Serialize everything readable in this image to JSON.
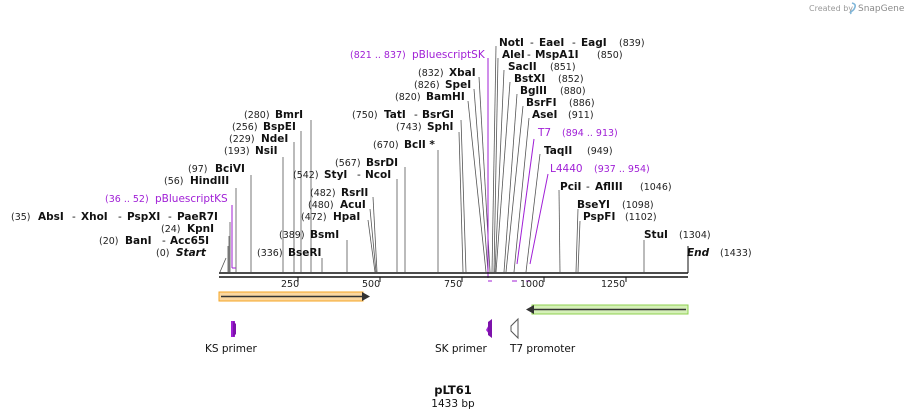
{
  "credit": {
    "text": "Created by",
    "brand": "SnapGene"
  },
  "plasmid": {
    "name": "pLT61",
    "length": "1433 bp"
  },
  "axis": {
    "ticks": [
      "250",
      "500",
      "750",
      "1000",
      "1250"
    ],
    "start_label": "Start",
    "start_pos": "(0)",
    "end_label": "End",
    "end_pos": "(1433)"
  },
  "left_sites": {
    "bseRI": {
      "pos": "(336)",
      "name": "BseRI"
    },
    "acc65i": {
      "pos": "(20)",
      "name1": "BanI",
      "sep": "-",
      "name2": "Acc65I"
    },
    "kpni": {
      "pos": "(24)",
      "name": "KpnI"
    },
    "absi": {
      "pos": "(35)",
      "n1": "AbsI",
      "n2": "XhoI",
      "n3": "PspXI",
      "n4": "PaeR7I",
      "sep": "-"
    },
    "hindiii": {
      "pos": "(56)",
      "name": "HindIII"
    },
    "bcivi": {
      "pos": "(97)",
      "name": "BciVI"
    },
    "nsii": {
      "pos": "(193)",
      "name": "NsiI"
    },
    "ndei": {
      "pos": "(229)",
      "name": "NdeI"
    },
    "bspei": {
      "pos": "(256)",
      "name": "BspEI"
    },
    "bmri": {
      "pos": "(280)",
      "name": "BmrI"
    },
    "bsmi": {
      "pos": "(389)",
      "name": "BsmI"
    },
    "hpai": {
      "pos": "(472)",
      "name": "HpaI"
    },
    "acui": {
      "pos": "(480)",
      "name": "AcuI"
    },
    "rsrii": {
      "pos": "(482)",
      "name": "RsrII"
    },
    "styi": {
      "pos": "(542)",
      "name1": "StyI",
      "sep": "-",
      "name2": "NcoI"
    },
    "bsrdi": {
      "pos": "(567)",
      "name": "BsrDI"
    },
    "bcli": {
      "pos": "(670)",
      "name": "BclI *"
    },
    "sphi": {
      "pos": "(743)",
      "name": "SphI"
    },
    "tati": {
      "pos": "(750)",
      "name1": "TatI",
      "sep": "-",
      "name2": "BsrGI"
    }
  },
  "right_sites": {
    "bamhi": {
      "pos": "(820)",
      "name": "BamHI"
    },
    "spei": {
      "pos": "(826)",
      "name": "SpeI"
    },
    "xbai": {
      "pos": "(832)",
      "name": "XbaI"
    },
    "noti": {
      "n1": "NotI",
      "n2": "EaeI",
      "n3": "EagI",
      "sep": "-",
      "pos": "(839)"
    },
    "alei": {
      "n1": "AleI",
      "sep": "-",
      "n2": "MspA1I",
      "pos": "(850)"
    },
    "sacii": {
      "name": "SacII",
      "pos": "(851)"
    },
    "bstxi": {
      "name": "BstXI",
      "pos": "(852)"
    },
    "bglii": {
      "name": "BglII",
      "pos": "(880)"
    },
    "bsrfi": {
      "name": "BsrFI",
      "pos": "(886)"
    },
    "asei": {
      "name": "AseI",
      "pos": "(911)"
    },
    "taqii": {
      "name": "TaqII",
      "pos": "(949)"
    },
    "pcii": {
      "n1": "PciI",
      "sep": "-",
      "n2": "AflIII",
      "pos": "(1046)"
    },
    "bseyi": {
      "name": "BseYI",
      "pos": "(1098)"
    },
    "pspfi": {
      "name": "PspFI",
      "pos": "(1102)"
    },
    "stui": {
      "name": "StuI",
      "pos": "(1304)"
    }
  },
  "primer_sites": {
    "pbluescriptks": {
      "range": "(36 .. 52)",
      "name": "pBluescriptKS"
    },
    "pbluescriptsk": {
      "range": "(821 .. 837)",
      "name": "pBluescriptSK"
    },
    "t7": {
      "name": "T7",
      "range": "(894 .. 913)"
    },
    "l4440": {
      "name": "L4440",
      "range": "(937 .. 954)"
    }
  },
  "features": {
    "ks_primer": "KS primer",
    "sk_primer": "SK primer",
    "t7_promoter": "T7 promoter"
  },
  "colors": {
    "primer": "#a01fd6",
    "orange_feature": "#f5a623",
    "green_feature": "#8fd14f"
  }
}
